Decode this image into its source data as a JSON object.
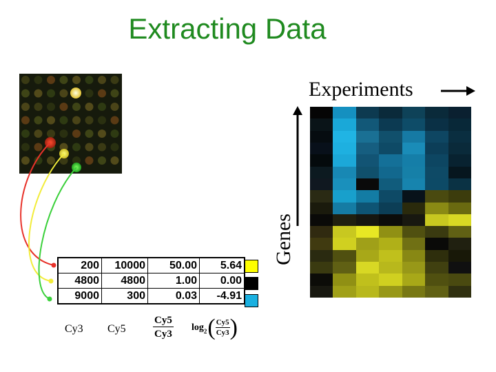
{
  "title": "Extracting Data",
  "table": {
    "rows": [
      {
        "cy3": "200",
        "cy5": "10000",
        "ratio": "50.00",
        "log": "5.64",
        "swatch": "#ffff00",
        "link_color": "#e8322a"
      },
      {
        "cy3": "4800",
        "cy5": "4800",
        "ratio": "1.00",
        "log": "0.00",
        "swatch": "#000000",
        "link_color": "#f2ec3a"
      },
      {
        "cy3": "9000",
        "cy5": "300",
        "ratio": "0.03",
        "log": "-4.91",
        "swatch": "#1ab0e0",
        "link_color": "#3ad03a"
      }
    ]
  },
  "column_labels": {
    "cy3": "Cy3",
    "cy5": "Cy5",
    "ratio_num": "Cy5",
    "ratio_den": "Cy3",
    "log_word": "log",
    "log_base": "2",
    "log_num": "Cy5",
    "log_den": "Cy3"
  },
  "heatmap": {
    "experiments_label": "Experiments",
    "genes_label": "Genes",
    "rows": [
      [
        "#050505",
        "#1590c0",
        "#0d3a50",
        "#0a2a3a",
        "#0e4258",
        "#0a2a3a",
        "#0a2030"
      ],
      [
        "#0a1418",
        "#1aa8d8",
        "#125878",
        "#0c3a52",
        "#0e4c68",
        "#0a3045",
        "#082838"
      ],
      [
        "#060c10",
        "#20b4e4",
        "#1a7094",
        "#11506c",
        "#167aa4",
        "#0e4662",
        "#0a2e40"
      ],
      [
        "#08101a",
        "#1eb0e0",
        "#165e80",
        "#0e4a66",
        "#1a8cb8",
        "#0c3e58",
        "#0a2a3a"
      ],
      [
        "#040a0c",
        "#1ca8d8",
        "#125474",
        "#147098",
        "#157ea8",
        "#0d4662",
        "#082230"
      ],
      [
        "#0c1a20",
        "#1888b4",
        "#10506c",
        "#1268 8e",
        "#1680a8",
        "#0e4a66",
        "#06161e"
      ],
      [
        "#101820",
        "#1a90bc",
        "#0a0a0a",
        "#115c7c",
        "#1784ae",
        "#0d4a66",
        "#0a3244"
      ],
      [
        "#2a2a14",
        "#18a0cc",
        "#137ca4",
        "#0e4a66",
        "#08121a",
        "#4a4a10",
        "#3c3c0c"
      ],
      [
        "#1a1a0c",
        "#157ca4",
        "#0e5474",
        "#0c3e56",
        "#2a2a0c",
        "#8a8a14",
        "#6a6a10"
      ],
      [
        "#0a0a08",
        "#202010",
        "#161610",
        "#0c0c0a",
        "#181810",
        "#c8c820",
        "#d8d824"
      ],
      [
        "#302a10",
        "#c8c820",
        "#e8e824",
        "#909014",
        "#505010",
        "#3a3a10",
        "#606014"
      ],
      [
        "#403a10",
        "#d0d020",
        "#a0a018",
        "#b0b018",
        "#707014",
        "#0a0a08",
        "#202010"
      ],
      [
        "#2a2a10",
        "#505010",
        "#a8a818",
        "#c0c01c",
        "#888814",
        "#2e2e0c",
        "#181808"
      ],
      [
        "#3a3a10",
        "#606014",
        "#d8d824",
        "#b8b81c",
        "#989818",
        "#404010",
        "#101010"
      ],
      [
        "#0c0c08",
        "#909014",
        "#c0c01c",
        "#d0d020",
        "#a8a818",
        "#505010",
        "#4a4a10"
      ],
      [
        "#181810",
        "#a0a018",
        "#b8b81c",
        "#989818",
        "#787814",
        "#606014",
        "#303010"
      ]
    ]
  }
}
